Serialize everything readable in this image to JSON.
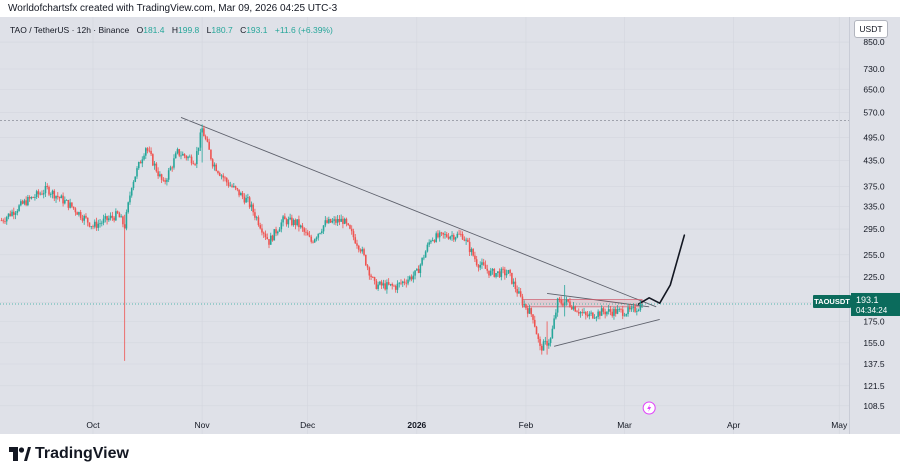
{
  "header": {
    "credit": "Worldofchartsfx created with TradingView.com, Mar 09, 2026 04:25 UTC-3",
    "currency_button": "USDT"
  },
  "legend": {
    "symbol": "TAO / TetherUS · 12h · Binance",
    "open_label": "O",
    "open": "181.4",
    "high_label": "H",
    "high": "199.8",
    "low_label": "L",
    "low": "180.7",
    "close_label": "C",
    "close": "193.1",
    "change": "+11.6 (+6.39%)"
  },
  "price_tag": {
    "ticker": "TAOUSDT",
    "price": "193.1",
    "countdown": "04:34:24",
    "color": "#0b6b5c"
  },
  "footer": {
    "brand": "TradingView"
  },
  "chart_data": {
    "type": "candlestick",
    "y_scale": "log",
    "y_ticks": [
      "850.0",
      "730.0",
      "650.0",
      "570.0",
      "495.0",
      "435.0",
      "375.0",
      "335.0",
      "295.0",
      "255.0",
      "225.0",
      "195.0",
      "175.0",
      "155.0",
      "137.5",
      "121.5",
      "108.5"
    ],
    "x_ticks": [
      "Oct",
      "Nov",
      "Dec",
      "2026",
      "Feb",
      "Mar",
      "Apr",
      "May"
    ],
    "up_color": "#26a69a",
    "down_color": "#ef5350",
    "price_path": [
      [
        "2025-09-05",
        310
      ],
      [
        "2025-09-12",
        345
      ],
      [
        "2025-09-18",
        370
      ],
      [
        "2025-09-25",
        335
      ],
      [
        "2025-10-01",
        300
      ],
      [
        "2025-10-08",
        320
      ],
      [
        "2025-10-10",
        300
      ],
      [
        "2025-10-12",
        380
      ],
      [
        "2025-10-16",
        470
      ],
      [
        "2025-10-21",
        380
      ],
      [
        "2025-10-25",
        455
      ],
      [
        "2025-10-30",
        435
      ],
      [
        "2025-11-01",
        520
      ],
      [
        "2025-11-04",
        430
      ],
      [
        "2025-11-08",
        385
      ],
      [
        "2025-11-14",
        345
      ],
      [
        "2025-11-20",
        275
      ],
      [
        "2025-11-24",
        310
      ],
      [
        "2025-11-28",
        305
      ],
      [
        "2025-12-02",
        275
      ],
      [
        "2025-12-06",
        305
      ],
      [
        "2025-12-11",
        310
      ],
      [
        "2025-12-16",
        265
      ],
      [
        "2025-12-20",
        215
      ],
      [
        "2025-12-26",
        213
      ],
      [
        "2026-01-01",
        230
      ],
      [
        "2026-01-05",
        280
      ],
      [
        "2026-01-10",
        285
      ],
      [
        "2026-01-14",
        285
      ],
      [
        "2026-01-18",
        245
      ],
      [
        "2026-01-22",
        230
      ],
      [
        "2026-01-27",
        230
      ],
      [
        "2026-01-31",
        195
      ],
      [
        "2026-02-03",
        180
      ],
      [
        "2026-02-05",
        150
      ],
      [
        "2026-02-08",
        158
      ],
      [
        "2026-02-10",
        195
      ],
      [
        "2026-02-13",
        195
      ],
      [
        "2026-02-18",
        180
      ],
      [
        "2026-02-23",
        185
      ],
      [
        "2026-02-27",
        185
      ],
      [
        "2026-03-03",
        185
      ],
      [
        "2026-03-06",
        193.1
      ]
    ],
    "wicks": [
      {
        "x": "2025-10-10",
        "low": 140,
        "high": 320
      },
      {
        "x": "2025-11-01",
        "low": 430,
        "high": 530
      },
      {
        "x": "2026-02-07",
        "low": 145,
        "high": 175
      },
      {
        "x": "2026-02-12",
        "low": 180,
        "high": 215
      }
    ],
    "current_price": 193.1,
    "drawings": [
      {
        "type": "trendline",
        "from": [
          "2025-10-26",
          555
        ],
        "to": [
          "2026-03-10",
          190
        ]
      },
      {
        "type": "trendline",
        "from": [
          "2026-02-07",
          205
        ],
        "to": [
          "2026-03-08",
          190
        ]
      },
      {
        "type": "trendline",
        "from": [
          "2026-02-09",
          152
        ],
        "to": [
          "2026-03-11",
          177
        ]
      },
      {
        "type": "horizontal_line",
        "y": 545
      },
      {
        "type": "zone",
        "from": "2026-01-31",
        "to": "2026-03-06",
        "low": 190,
        "high": 198
      },
      {
        "type": "projection_arrow",
        "points": [
          [
            "2026-03-05",
            193
          ],
          [
            "2026-03-08",
            200
          ],
          [
            "2026-03-11",
            194
          ],
          [
            "2026-03-14",
            215
          ],
          [
            "2026-03-18",
            285
          ]
        ]
      }
    ]
  }
}
